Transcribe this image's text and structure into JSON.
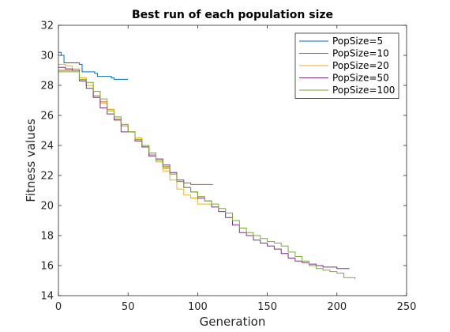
{
  "chart_data": {
    "type": "line",
    "title": "Best run of each population size",
    "xlabel": "Generation",
    "ylabel": "Fitness values",
    "xlim": [
      0,
      250
    ],
    "ylim": [
      14,
      32
    ],
    "xticks": [
      0,
      50,
      100,
      150,
      200,
      250
    ],
    "yticks": [
      14,
      16,
      18,
      20,
      22,
      24,
      26,
      28,
      30,
      32
    ],
    "legend_position": "top-right",
    "grid": false,
    "series": [
      {
        "name": "PopSize=5",
        "color": "#0072BD",
        "x": [
          0,
          2,
          4,
          15,
          17,
          26,
          28,
          38,
          40,
          50
        ],
        "y": [
          30.2,
          30.0,
          29.5,
          29.4,
          28.9,
          28.8,
          28.6,
          28.5,
          28.4,
          28.4
        ]
      },
      {
        "name": "PopSize=10",
        "color": "#D95319",
        "x": [
          0,
          5,
          10,
          15,
          20,
          25,
          30,
          35,
          40,
          45,
          50,
          55,
          60,
          65,
          70,
          75,
          80,
          85,
          90,
          95,
          100,
          105,
          111
        ],
        "y": [
          29.0,
          29.0,
          29.0,
          28.3,
          28.0,
          27.3,
          26.9,
          26.4,
          25.7,
          25.3,
          24.9,
          24.3,
          23.9,
          23.3,
          23.0,
          22.5,
          22.1,
          21.6,
          21.5,
          21.4,
          21.4,
          21.4,
          21.4
        ]
      },
      {
        "name": "PopSize=20",
        "color": "#EDB120",
        "x": [
          0,
          5,
          10,
          15,
          20,
          25,
          30,
          35,
          40,
          45,
          50,
          55,
          60,
          65,
          70,
          75,
          80,
          85,
          90,
          95,
          100,
          110
        ],
        "y": [
          29.4,
          29.3,
          29.1,
          28.5,
          28.0,
          27.6,
          26.8,
          26.4,
          25.8,
          25.3,
          24.9,
          24.5,
          24.0,
          23.4,
          22.9,
          22.3,
          21.7,
          21.1,
          20.7,
          20.5,
          20.1,
          20.0
        ]
      },
      {
        "name": "PopSize=50",
        "color": "#7E2F8E",
        "x": [
          0,
          5,
          10,
          15,
          20,
          25,
          30,
          35,
          40,
          45,
          50,
          55,
          60,
          65,
          70,
          75,
          80,
          85,
          90,
          95,
          100,
          105,
          110,
          115,
          120,
          125,
          130,
          135,
          140,
          145,
          150,
          155,
          160,
          165,
          170,
          175,
          180,
          185,
          190,
          195,
          200,
          209
        ],
        "y": [
          29.2,
          29.1,
          29.0,
          28.3,
          27.8,
          27.2,
          26.5,
          26.1,
          25.7,
          24.9,
          24.9,
          24.3,
          23.9,
          23.3,
          23.1,
          22.7,
          22.2,
          21.7,
          21.2,
          20.9,
          20.5,
          20.3,
          19.9,
          19.6,
          19.2,
          18.7,
          18.2,
          18.0,
          17.7,
          17.5,
          17.3,
          17.1,
          16.8,
          16.5,
          16.3,
          16.2,
          16.1,
          16.0,
          15.9,
          15.9,
          15.8,
          15.8
        ]
      },
      {
        "name": "PopSize=100",
        "color": "#77AC30",
        "x": [
          0,
          5,
          10,
          15,
          20,
          25,
          30,
          35,
          40,
          45,
          50,
          55,
          60,
          65,
          70,
          75,
          80,
          85,
          90,
          95,
          100,
          105,
          110,
          115,
          120,
          125,
          130,
          135,
          140,
          145,
          150,
          155,
          160,
          165,
          170,
          175,
          180,
          185,
          190,
          195,
          200,
          205,
          213
        ],
        "y": [
          28.9,
          28.9,
          28.9,
          28.4,
          28.2,
          27.6,
          27.1,
          26.3,
          25.9,
          25.4,
          24.9,
          24.4,
          24.0,
          23.5,
          23.0,
          22.6,
          22.1,
          21.6,
          21.2,
          20.9,
          20.6,
          20.3,
          20.1,
          19.8,
          19.5,
          19.0,
          18.5,
          18.2,
          18.0,
          17.8,
          17.6,
          17.5,
          17.3,
          16.9,
          16.6,
          16.3,
          16.0,
          15.8,
          15.7,
          15.6,
          15.5,
          15.2,
          15.1
        ]
      }
    ]
  }
}
